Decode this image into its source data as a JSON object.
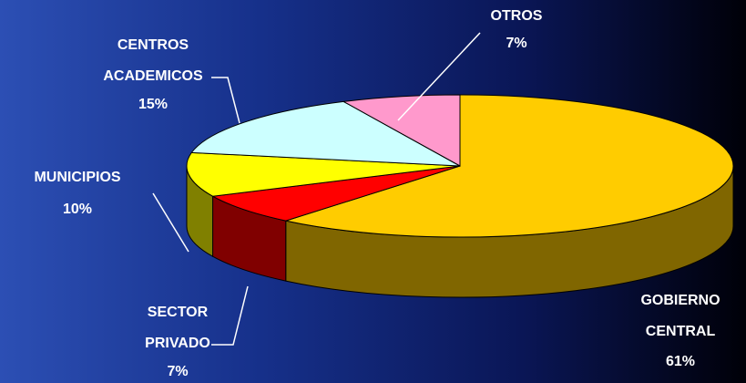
{
  "chart_data": {
    "type": "pie3d",
    "categories": [
      "GOBIERNO CENTRAL",
      "SECTOR PRIVADO",
      "MUNICIPIOS",
      "CENTROS ACADEMICOS",
      "OTROS"
    ],
    "values": [
      61,
      7,
      10,
      15,
      7
    ],
    "value_labels": [
      "61%",
      "7%",
      "10%",
      "15%",
      "7%"
    ],
    "colors": [
      "#ffcc00",
      "#ff0000",
      "#ffff00",
      "#ccffff",
      "#ff99cc"
    ]
  }
}
